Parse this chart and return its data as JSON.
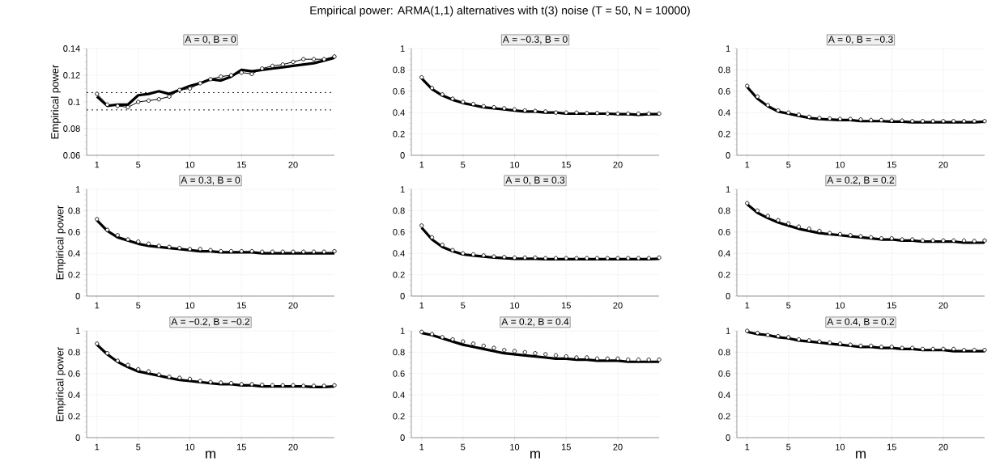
{
  "chart_data": [
    {
      "type": "line",
      "title": "A = 0, B = 0",
      "ylabel": "Empirical power",
      "annotations": [
        "Empirical power: ARMA(1,1) alternatives with t(3) noise (T = 50, N = 10000)"
      ],
      "x": [
        1,
        2,
        3,
        4,
        5,
        6,
        7,
        8,
        9,
        10,
        11,
        12,
        13,
        14,
        15,
        16,
        17,
        18,
        19,
        20,
        21,
        22,
        23,
        24
      ],
      "xlim": [
        0,
        24
      ],
      "xticks": [
        1,
        5,
        10,
        15,
        20
      ],
      "ylim": [
        0.06,
        0.14
      ],
      "yticks": [
        0.06,
        0.08,
        0.1,
        0.12,
        0.14
      ],
      "grid": true,
      "ref_lines": [
        {
          "axis": "y",
          "value": 0.107,
          "line_style": "dashed"
        },
        {
          "axis": "y",
          "value": 0.094,
          "line_style": "dashed"
        }
      ],
      "series": [
        {
          "color": "#000000",
          "marker": "none",
          "line_style": "solid",
          "values": [
            0.104,
            0.097,
            0.098,
            0.098,
            0.105,
            0.106,
            0.108,
            0.106,
            0.109,
            0.112,
            0.114,
            0.117,
            0.116,
            0.119,
            0.124,
            0.123,
            0.124,
            0.125,
            0.126,
            0.127,
            0.128,
            0.129,
            0.131,
            0.133
          ]
        },
        {
          "color": "#000000",
          "marker": "circle",
          "line_style": "solid",
          "values": [
            0.106,
            0.098,
            0.097,
            0.096,
            0.1,
            0.101,
            0.102,
            0.104,
            0.109,
            0.11,
            0.114,
            0.117,
            0.119,
            0.12,
            0.122,
            0.121,
            0.125,
            0.127,
            0.128,
            0.13,
            0.132,
            0.132,
            0.132,
            0.134
          ]
        }
      ]
    },
    {
      "type": "line",
      "title": "A = −0.3, B = 0",
      "x": [
        1,
        2,
        3,
        4,
        5,
        6,
        7,
        8,
        9,
        10,
        11,
        12,
        13,
        14,
        15,
        16,
        17,
        18,
        19,
        20,
        21,
        22,
        23,
        24
      ],
      "xlim": [
        0,
        24
      ],
      "xticks": [
        1,
        5,
        10,
        15,
        20
      ],
      "ylim": [
        0,
        1
      ],
      "yticks": [
        0,
        0.2,
        0.4,
        0.6,
        0.8,
        1
      ],
      "grid": true,
      "series": [
        {
          "color": "#000000",
          "marker": "none",
          "line_style": "solid",
          "values": [
            0.72,
            0.62,
            0.56,
            0.52,
            0.49,
            0.47,
            0.45,
            0.44,
            0.43,
            0.42,
            0.41,
            0.41,
            0.4,
            0.4,
            0.39,
            0.39,
            0.39,
            0.39,
            0.39,
            0.385,
            0.385,
            0.38,
            0.385,
            0.385
          ]
        },
        {
          "type": "scatter",
          "color": "#000000",
          "marker": "circle",
          "values": [
            0.73,
            0.63,
            0.57,
            0.53,
            0.5,
            0.48,
            0.46,
            0.45,
            0.44,
            0.43,
            0.42,
            0.415,
            0.41,
            0.4,
            0.4,
            0.4,
            0.395,
            0.395,
            0.39,
            0.39,
            0.39,
            0.39,
            0.39,
            0.39
          ]
        }
      ]
    },
    {
      "type": "line",
      "title": "A = 0, B = −0.3",
      "x": [
        1,
        2,
        3,
        4,
        5,
        6,
        7,
        8,
        9,
        10,
        11,
        12,
        13,
        14,
        15,
        16,
        17,
        18,
        19,
        20,
        21,
        22,
        23,
        24
      ],
      "xlim": [
        0,
        24
      ],
      "xticks": [
        1,
        5,
        10,
        15,
        20
      ],
      "ylim": [
        0,
        1
      ],
      "yticks": [
        0,
        0.2,
        0.4,
        0.6,
        0.8,
        1
      ],
      "grid": true,
      "series": [
        {
          "color": "#000000",
          "marker": "none",
          "line_style": "solid",
          "values": [
            0.64,
            0.53,
            0.46,
            0.41,
            0.39,
            0.37,
            0.35,
            0.34,
            0.335,
            0.33,
            0.33,
            0.32,
            0.32,
            0.32,
            0.315,
            0.315,
            0.31,
            0.31,
            0.31,
            0.31,
            0.31,
            0.31,
            0.31,
            0.315
          ]
        },
        {
          "type": "scatter",
          "color": "#000000",
          "marker": "circle",
          "values": [
            0.65,
            0.55,
            0.47,
            0.42,
            0.4,
            0.38,
            0.36,
            0.35,
            0.345,
            0.34,
            0.34,
            0.335,
            0.33,
            0.33,
            0.325,
            0.325,
            0.32,
            0.32,
            0.32,
            0.32,
            0.32,
            0.32,
            0.32,
            0.32
          ]
        }
      ]
    },
    {
      "type": "line",
      "title": "A = 0.3, B = 0",
      "ylabel": "Empirical power",
      "x": [
        1,
        2,
        3,
        4,
        5,
        6,
        7,
        8,
        9,
        10,
        11,
        12,
        13,
        14,
        15,
        16,
        17,
        18,
        19,
        20,
        21,
        22,
        23,
        24
      ],
      "xlim": [
        0,
        24
      ],
      "xticks": [
        1,
        5,
        10,
        15,
        20
      ],
      "ylim": [
        0,
        1
      ],
      "yticks": [
        0,
        0.2,
        0.4,
        0.6,
        0.8,
        1
      ],
      "grid": true,
      "series": [
        {
          "color": "#000000",
          "marker": "none",
          "line_style": "solid",
          "values": [
            0.71,
            0.61,
            0.55,
            0.52,
            0.49,
            0.47,
            0.46,
            0.45,
            0.44,
            0.43,
            0.42,
            0.42,
            0.41,
            0.41,
            0.41,
            0.41,
            0.4,
            0.4,
            0.4,
            0.4,
            0.4,
            0.4,
            0.4,
            0.4
          ]
        },
        {
          "type": "scatter",
          "color": "#000000",
          "marker": "circle",
          "values": [
            0.72,
            0.62,
            0.57,
            0.53,
            0.51,
            0.49,
            0.47,
            0.46,
            0.45,
            0.44,
            0.44,
            0.43,
            0.42,
            0.42,
            0.42,
            0.42,
            0.415,
            0.415,
            0.415,
            0.415,
            0.415,
            0.415,
            0.415,
            0.42
          ]
        }
      ]
    },
    {
      "type": "line",
      "title": "A = 0, B = 0.3",
      "x": [
        1,
        2,
        3,
        4,
        5,
        6,
        7,
        8,
        9,
        10,
        11,
        12,
        13,
        14,
        15,
        16,
        17,
        18,
        19,
        20,
        21,
        22,
        23,
        24
      ],
      "xlim": [
        0,
        24
      ],
      "xticks": [
        1,
        5,
        10,
        15,
        20
      ],
      "ylim": [
        0,
        1
      ],
      "yticks": [
        0,
        0.2,
        0.4,
        0.6,
        0.8,
        1
      ],
      "grid": true,
      "series": [
        {
          "color": "#000000",
          "marker": "none",
          "line_style": "solid",
          "values": [
            0.64,
            0.53,
            0.46,
            0.42,
            0.39,
            0.38,
            0.37,
            0.36,
            0.355,
            0.35,
            0.35,
            0.35,
            0.345,
            0.345,
            0.345,
            0.345,
            0.345,
            0.345,
            0.345,
            0.345,
            0.345,
            0.345,
            0.345,
            0.35
          ]
        },
        {
          "type": "scatter",
          "color": "#000000",
          "marker": "circle",
          "values": [
            0.66,
            0.55,
            0.48,
            0.43,
            0.4,
            0.39,
            0.38,
            0.37,
            0.365,
            0.36,
            0.36,
            0.36,
            0.355,
            0.355,
            0.355,
            0.355,
            0.355,
            0.355,
            0.355,
            0.355,
            0.355,
            0.355,
            0.355,
            0.36
          ]
        }
      ]
    },
    {
      "type": "line",
      "title": "A = 0.2, B = 0.2",
      "x": [
        1,
        2,
        3,
        4,
        5,
        6,
        7,
        8,
        9,
        10,
        11,
        12,
        13,
        14,
        15,
        16,
        17,
        18,
        19,
        20,
        21,
        22,
        23,
        24
      ],
      "xlim": [
        0,
        24
      ],
      "xticks": [
        1,
        5,
        10,
        15,
        20
      ],
      "ylim": [
        0,
        1
      ],
      "yticks": [
        0,
        0.2,
        0.4,
        0.6,
        0.8,
        1
      ],
      "grid": true,
      "series": [
        {
          "color": "#000000",
          "marker": "none",
          "line_style": "solid",
          "values": [
            0.86,
            0.78,
            0.73,
            0.69,
            0.66,
            0.63,
            0.61,
            0.59,
            0.58,
            0.57,
            0.56,
            0.55,
            0.54,
            0.53,
            0.53,
            0.52,
            0.52,
            0.51,
            0.51,
            0.51,
            0.51,
            0.5,
            0.5,
            0.5
          ]
        },
        {
          "type": "scatter",
          "color": "#000000",
          "marker": "circle",
          "values": [
            0.87,
            0.8,
            0.75,
            0.71,
            0.68,
            0.65,
            0.63,
            0.61,
            0.59,
            0.58,
            0.57,
            0.56,
            0.55,
            0.54,
            0.54,
            0.53,
            0.53,
            0.52,
            0.52,
            0.52,
            0.52,
            0.52,
            0.515,
            0.52
          ]
        }
      ]
    },
    {
      "type": "line",
      "title": "A = −0.2, B = −0.2",
      "ylabel": "Empirical power",
      "xlabel": "m",
      "x": [
        1,
        2,
        3,
        4,
        5,
        6,
        7,
        8,
        9,
        10,
        11,
        12,
        13,
        14,
        15,
        16,
        17,
        18,
        19,
        20,
        21,
        22,
        23,
        24
      ],
      "xlim": [
        0,
        24
      ],
      "xticks": [
        1,
        5,
        10,
        15,
        20
      ],
      "ylim": [
        0,
        1
      ],
      "yticks": [
        0,
        0.2,
        0.4,
        0.6,
        0.8,
        1
      ],
      "grid": true,
      "series": [
        {
          "color": "#000000",
          "marker": "none",
          "line_style": "solid",
          "values": [
            0.87,
            0.78,
            0.71,
            0.66,
            0.62,
            0.6,
            0.58,
            0.56,
            0.54,
            0.53,
            0.52,
            0.51,
            0.5,
            0.5,
            0.49,
            0.49,
            0.48,
            0.48,
            0.48,
            0.48,
            0.48,
            0.475,
            0.475,
            0.48
          ]
        },
        {
          "type": "scatter",
          "color": "#000000",
          "marker": "circle",
          "values": [
            0.88,
            0.79,
            0.72,
            0.68,
            0.64,
            0.62,
            0.59,
            0.57,
            0.56,
            0.55,
            0.53,
            0.52,
            0.515,
            0.51,
            0.5,
            0.5,
            0.495,
            0.49,
            0.49,
            0.49,
            0.485,
            0.485,
            0.485,
            0.49
          ]
        }
      ]
    },
    {
      "type": "line",
      "title": "A = 0.2, B = 0.4",
      "xlabel": "m",
      "x": [
        1,
        2,
        3,
        4,
        5,
        6,
        7,
        8,
        9,
        10,
        11,
        12,
        13,
        14,
        15,
        16,
        17,
        18,
        19,
        20,
        21,
        22,
        23,
        24
      ],
      "xlim": [
        0,
        24
      ],
      "xticks": [
        1,
        5,
        10,
        15,
        20
      ],
      "ylim": [
        0,
        1
      ],
      "yticks": [
        0,
        0.2,
        0.4,
        0.6,
        0.8,
        1
      ],
      "grid": true,
      "series": [
        {
          "color": "#000000",
          "marker": "none",
          "line_style": "solid",
          "values": [
            0.98,
            0.96,
            0.93,
            0.9,
            0.87,
            0.85,
            0.83,
            0.81,
            0.79,
            0.78,
            0.77,
            0.76,
            0.75,
            0.74,
            0.74,
            0.73,
            0.73,
            0.72,
            0.72,
            0.72,
            0.71,
            0.71,
            0.71,
            0.71
          ]
        },
        {
          "type": "scatter",
          "color": "#000000",
          "marker": "circle",
          "values": [
            0.99,
            0.97,
            0.94,
            0.92,
            0.9,
            0.88,
            0.86,
            0.84,
            0.82,
            0.81,
            0.8,
            0.79,
            0.78,
            0.77,
            0.76,
            0.75,
            0.75,
            0.74,
            0.74,
            0.74,
            0.73,
            0.73,
            0.73,
            0.73
          ]
        }
      ]
    },
    {
      "type": "line",
      "title": "A = 0.4, B = 0.2",
      "xlabel": "m",
      "x": [
        1,
        2,
        3,
        4,
        5,
        6,
        7,
        8,
        9,
        10,
        11,
        12,
        13,
        14,
        15,
        16,
        17,
        18,
        19,
        20,
        21,
        22,
        23,
        24
      ],
      "xlim": [
        0,
        24
      ],
      "xticks": [
        1,
        5,
        10,
        15,
        20
      ],
      "ylim": [
        0,
        1
      ],
      "yticks": [
        0,
        0.2,
        0.4,
        0.6,
        0.8,
        1
      ],
      "grid": true,
      "series": [
        {
          "color": "#000000",
          "marker": "none",
          "line_style": "solid",
          "values": [
            0.99,
            0.97,
            0.96,
            0.94,
            0.93,
            0.91,
            0.9,
            0.89,
            0.88,
            0.87,
            0.86,
            0.85,
            0.85,
            0.84,
            0.84,
            0.83,
            0.83,
            0.82,
            0.82,
            0.82,
            0.81,
            0.81,
            0.81,
            0.81
          ]
        },
        {
          "type": "scatter",
          "color": "#000000",
          "marker": "circle",
          "values": [
            1.0,
            0.98,
            0.96,
            0.95,
            0.94,
            0.92,
            0.91,
            0.9,
            0.89,
            0.88,
            0.87,
            0.86,
            0.86,
            0.85,
            0.85,
            0.84,
            0.84,
            0.83,
            0.83,
            0.83,
            0.83,
            0.82,
            0.82,
            0.82
          ]
        }
      ]
    }
  ]
}
